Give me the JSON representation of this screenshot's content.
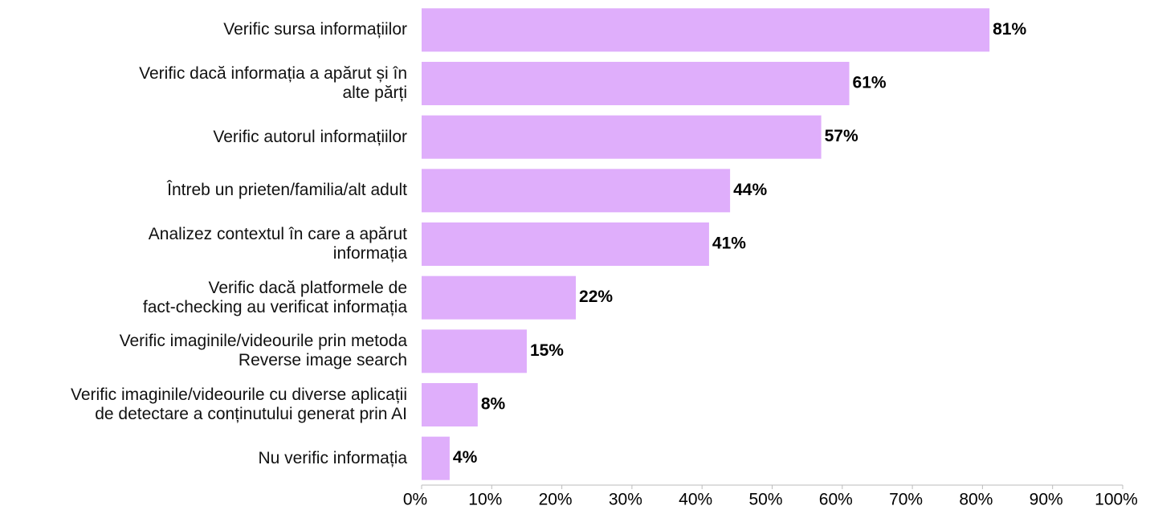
{
  "chart_data": {
    "type": "bar",
    "orientation": "horizontal",
    "categories": [
      "Verific sursa informațiilor",
      "Verific dacă informația a apărut și în\nalte părți",
      "Verific autorul informațiilor",
      "Întreb un prieten/familia/alt adult",
      "Analizez contextul în care a apărut\ninformația",
      "Verific dacă platformele de\nfact-checking au verificat informația",
      "Verific imaginile/videourile prin metoda\nReverse image search",
      "Verific imaginile/videourile cu diverse aplicații\nde detectare a conținutului generat prin AI",
      "Nu verific informația"
    ],
    "values": [
      81,
      61,
      57,
      44,
      41,
      22,
      15,
      8,
      4
    ],
    "value_labels": [
      "81%",
      "61%",
      "57%",
      "44%",
      "41%",
      "22%",
      "15%",
      "8%",
      "4%"
    ],
    "color": "#dfaefb",
    "xlim": [
      0,
      100
    ],
    "xticks": [
      {
        "value": 0,
        "label": "0%"
      },
      {
        "value": 10,
        "label": "10%"
      },
      {
        "value": 20,
        "label": "20%"
      },
      {
        "value": 30,
        "label": "30%"
      },
      {
        "value": 40,
        "label": "40%"
      },
      {
        "value": 50,
        "label": "50%"
      },
      {
        "value": 60,
        "label": "60%"
      },
      {
        "value": 70,
        "label": "70%"
      },
      {
        "value": 80,
        "label": "80%"
      },
      {
        "value": 90,
        "label": "90%"
      },
      {
        "value": 100,
        "label": "100%"
      }
    ],
    "grid": false
  }
}
